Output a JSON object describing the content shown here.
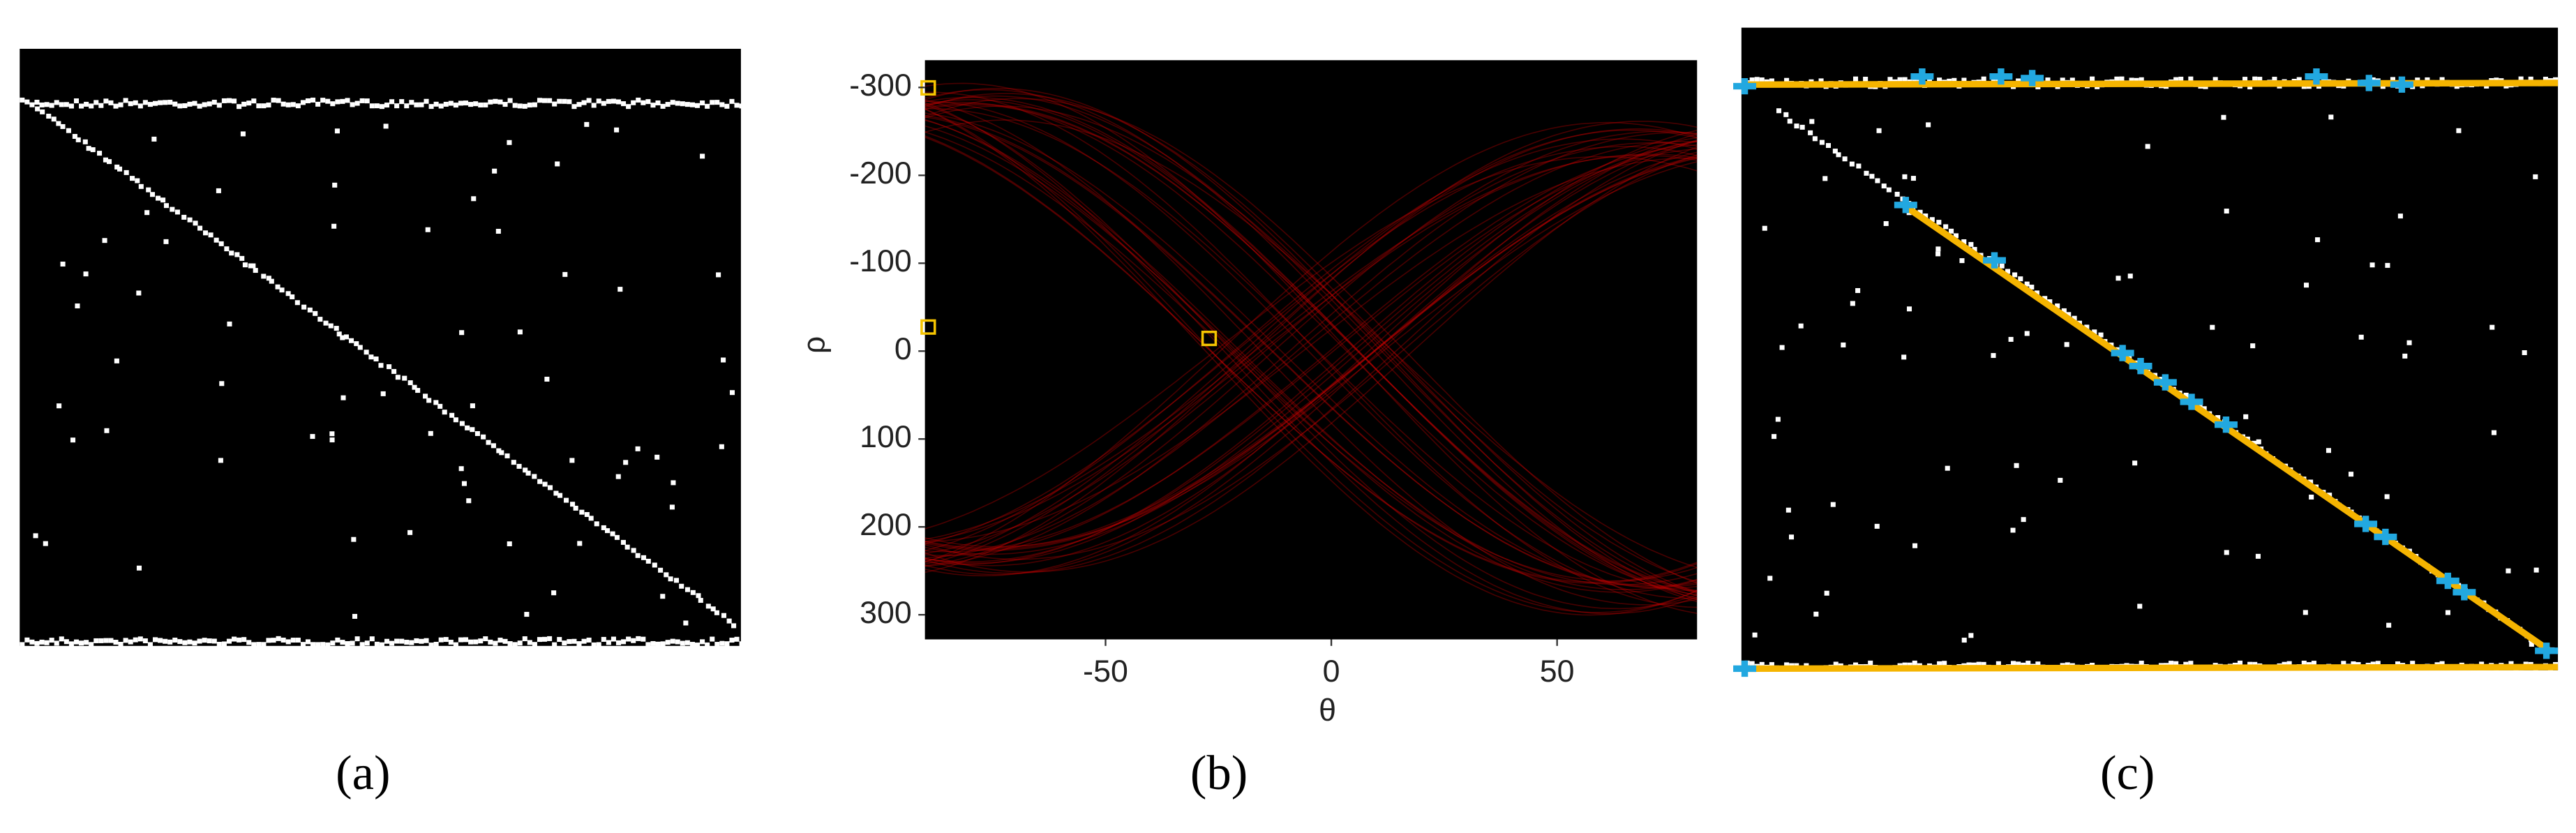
{
  "panels": [
    {
      "label": "(a)"
    },
    {
      "label": "(b)",
      "chart_data": {
        "type": "hough",
        "xlabel": "θ",
        "ylabel": "ρ",
        "xlim": [
          -90,
          81
        ],
        "ylim": [
          -331,
          328
        ],
        "xticks": [
          -50,
          0,
          50
        ],
        "yticks": [
          -300,
          -200,
          -100,
          0,
          100,
          200,
          300
        ]
      }
    },
    {
      "label": "(c)"
    }
  ]
}
